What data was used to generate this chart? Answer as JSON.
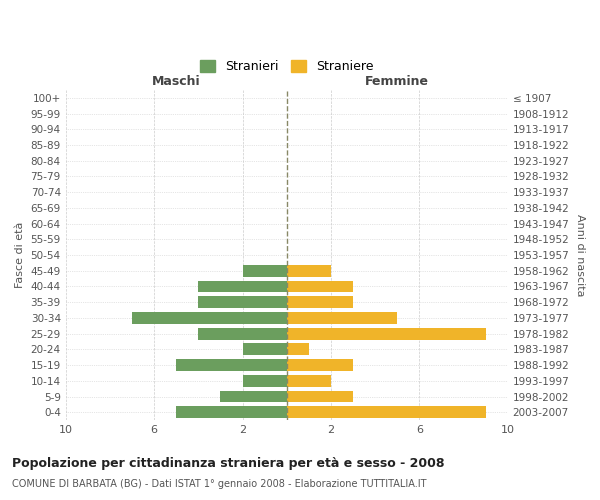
{
  "age_groups": [
    "0-4",
    "5-9",
    "10-14",
    "15-19",
    "20-24",
    "25-29",
    "30-34",
    "35-39",
    "40-44",
    "45-49",
    "50-54",
    "55-59",
    "60-64",
    "65-69",
    "70-74",
    "75-79",
    "80-84",
    "85-89",
    "90-94",
    "95-99",
    "100+"
  ],
  "birth_years": [
    "2003-2007",
    "1998-2002",
    "1993-1997",
    "1988-1992",
    "1983-1987",
    "1978-1982",
    "1973-1977",
    "1968-1972",
    "1963-1967",
    "1958-1962",
    "1953-1957",
    "1948-1952",
    "1943-1947",
    "1938-1942",
    "1933-1937",
    "1928-1932",
    "1923-1927",
    "1918-1922",
    "1913-1917",
    "1908-1912",
    "≤ 1907"
  ],
  "males": [
    5,
    3,
    2,
    5,
    2,
    4,
    7,
    4,
    4,
    2,
    0,
    0,
    0,
    0,
    0,
    0,
    0,
    0,
    0,
    0,
    0
  ],
  "females": [
    9,
    3,
    2,
    3,
    1,
    9,
    5,
    3,
    3,
    2,
    0,
    0,
    0,
    0,
    0,
    0,
    0,
    0,
    0,
    0,
    0
  ],
  "male_color": "#6b9e5e",
  "female_color": "#f0b429",
  "title": "Popolazione per cittadinanza straniera per età e sesso - 2008",
  "subtitle": "COMUNE DI BARBATA (BG) - Dati ISTAT 1° gennaio 2008 - Elaborazione TUTTITALIA.IT",
  "left_label": "Maschi",
  "right_label": "Femmine",
  "ylabel_left": "Fasce di età",
  "ylabel_right": "Anni di nascita",
  "legend_males": "Stranieri",
  "legend_females": "Straniere",
  "xlim": 10,
  "background_color": "#ffffff",
  "grid_color": "#cccccc"
}
